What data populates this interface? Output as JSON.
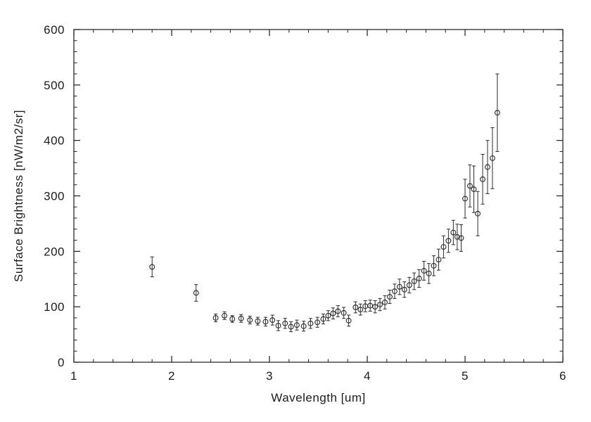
{
  "chart_data": {
    "type": "scatter",
    "title": "",
    "xlabel": "Wavelength [um]",
    "ylabel": "Surface Brightness [nW/m2/sr]",
    "xlim": [
      1,
      6
    ],
    "ylim": [
      0,
      600
    ],
    "xticks": [
      1,
      2,
      3,
      4,
      5,
      6
    ],
    "yticks": [
      0,
      100,
      200,
      300,
      400,
      500,
      600
    ],
    "x_minor_step": 0.2,
    "y_minor_step": 20,
    "grid": false,
    "legend": "none",
    "marker": "open-circle",
    "error_bars": true,
    "axis_color": "#1c1c1c",
    "marker_color": "#2a2a2a",
    "x": [
      1.8,
      2.25,
      2.45,
      2.54,
      2.62,
      2.71,
      2.8,
      2.88,
      2.96,
      3.03,
      3.09,
      3.16,
      3.22,
      3.28,
      3.35,
      3.42,
      3.49,
      3.55,
      3.6,
      3.65,
      3.7,
      3.76,
      3.81,
      3.88,
      3.93,
      3.98,
      4.03,
      4.08,
      4.13,
      4.18,
      4.23,
      4.28,
      4.33,
      4.38,
      4.43,
      4.48,
      4.53,
      4.58,
      4.63,
      4.68,
      4.73,
      4.78,
      4.83,
      4.88,
      4.92,
      4.96,
      5.0,
      5.05,
      5.09,
      5.13,
      5.18,
      5.23,
      5.28,
      5.33
    ],
    "y": [
      172,
      125,
      80,
      84,
      78,
      79,
      76,
      74,
      73,
      76,
      66,
      70,
      64,
      67,
      65,
      70,
      72,
      78,
      84,
      88,
      92,
      89,
      75,
      99,
      95,
      101,
      102,
      100,
      104,
      108,
      118,
      128,
      136,
      131,
      139,
      146,
      151,
      165,
      160,
      174,
      185,
      208,
      219,
      234,
      226,
      224,
      295,
      318,
      312,
      268,
      330,
      352,
      368,
      450
    ],
    "yerr": [
      18,
      15,
      7,
      7,
      6,
      7,
      7,
      7,
      8,
      9,
      9,
      9,
      9,
      9,
      9,
      9,
      9,
      9,
      9,
      10,
      10,
      10,
      10,
      10,
      10,
      10,
      10,
      11,
      11,
      12,
      12,
      13,
      14,
      14,
      14,
      15,
      16,
      17,
      18,
      18,
      19,
      20,
      21,
      22,
      23,
      24,
      35,
      38,
      42,
      40,
      45,
      48,
      55,
      70
    ]
  }
}
